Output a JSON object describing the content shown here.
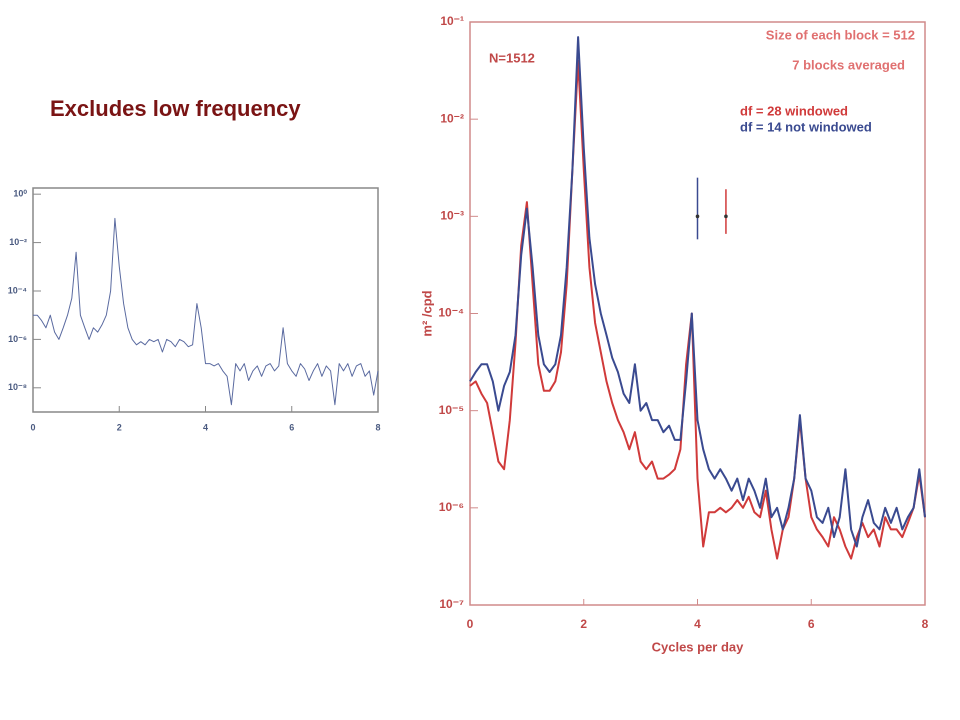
{
  "title": "Excludes low frequency",
  "chart_data": [
    {
      "type": "line",
      "color": "#5a6aa0",
      "log_y": true,
      "xlim": [
        0,
        8
      ],
      "xticks": [
        0,
        2,
        4,
        6,
        8
      ],
      "ylim": [
        1e-09,
        1.8
      ],
      "yticks": [
        {
          "value": 1,
          "label": "10⁰"
        },
        {
          "value": 0.01,
          "label": "10⁻²"
        },
        {
          "value": 0.0001,
          "label": "10⁻⁴"
        },
        {
          "value": 1e-06,
          "label": "10⁻⁶"
        },
        {
          "value": 1e-08,
          "label": "10⁻⁸"
        }
      ],
      "x": [
        0,
        0.1,
        0.2,
        0.3,
        0.4,
        0.5,
        0.6,
        0.7,
        0.8,
        0.9,
        1,
        1.1,
        1.2,
        1.3,
        1.4,
        1.5,
        1.6,
        1.7,
        1.8,
        1.9,
        2,
        2.1,
        2.2,
        2.3,
        2.4,
        2.5,
        2.6,
        2.7,
        2.8,
        2.9,
        3,
        3.1,
        3.2,
        3.3,
        3.4,
        3.5,
        3.6,
        3.7,
        3.8,
        3.9,
        4,
        4.1,
        4.2,
        4.3,
        4.4,
        4.5,
        4.6,
        4.7,
        4.8,
        4.9,
        5,
        5.1,
        5.2,
        5.3,
        5.4,
        5.5,
        5.6,
        5.7,
        5.8,
        5.9,
        6,
        6.1,
        6.2,
        6.3,
        6.4,
        6.5,
        6.6,
        6.7,
        6.8,
        6.9,
        7,
        7.1,
        7.2,
        7.3,
        7.4,
        7.5,
        7.6,
        7.7,
        7.8,
        7.9,
        8
      ],
      "values": [
        1e-05,
        1e-05,
        6e-06,
        3e-06,
        1e-05,
        2e-06,
        1e-06,
        3e-06,
        1e-05,
        5e-05,
        0.004,
        1e-05,
        3e-06,
        1e-06,
        3e-06,
        2e-06,
        4e-06,
        1e-05,
        0.0001,
        0.1,
        0.001,
        3e-05,
        3e-06,
        1e-06,
        6e-07,
        8e-07,
        6e-07,
        1e-06,
        8e-07,
        1e-06,
        3e-07,
        1e-06,
        8e-07,
        5e-07,
        1e-06,
        8e-07,
        5e-07,
        6e-07,
        3e-05,
        3e-06,
        1e-07,
        1e-07,
        8e-08,
        1e-07,
        5e-08,
        3e-08,
        2e-09,
        1e-07,
        5e-08,
        1e-07,
        2e-08,
        5e-08,
        8e-08,
        3e-08,
        8e-08,
        1e-07,
        5e-08,
        8e-08,
        3e-06,
        1e-07,
        5e-08,
        3e-08,
        1e-07,
        6e-08,
        2e-08,
        5e-08,
        1e-07,
        3e-08,
        8e-08,
        5e-08,
        2e-09,
        1e-07,
        5e-08,
        1e-07,
        3e-08,
        8e-08,
        1e-07,
        3e-08,
        5e-08,
        5e-09,
        5e-08
      ]
    },
    {
      "type": "line",
      "log_y": true,
      "x_label": "Cycles per day",
      "y_label": "m² /cpd",
      "annotations": [
        "N=1512",
        "Size of each block =  512",
        "7 blocks averaged"
      ],
      "xlim": [
        0,
        8
      ],
      "xticks": [
        0,
        2,
        4,
        6,
        8
      ],
      "ylim": [
        1e-07,
        0.1
      ],
      "yticks": [
        {
          "value": 0.1,
          "label": "10⁻¹"
        },
        {
          "value": 0.01,
          "label": "10⁻²"
        },
        {
          "value": 0.001,
          "label": "10⁻³"
        },
        {
          "value": 0.0001,
          "label": "10⁻⁴"
        },
        {
          "value": 1e-05,
          "label": "10⁻⁵"
        },
        {
          "value": 1e-06,
          "label": "10⁻⁶"
        },
        {
          "value": 1e-07,
          "label": "10⁻⁷"
        }
      ],
      "x": [
        0,
        0.1,
        0.2,
        0.3,
        0.4,
        0.5,
        0.6,
        0.7,
        0.8,
        0.9,
        1,
        1.1,
        1.2,
        1.3,
        1.4,
        1.5,
        1.6,
        1.7,
        1.8,
        1.9,
        2,
        2.1,
        2.2,
        2.3,
        2.4,
        2.5,
        2.6,
        2.7,
        2.8,
        2.9,
        3,
        3.1,
        3.2,
        3.3,
        3.4,
        3.5,
        3.6,
        3.7,
        3.8,
        3.9,
        4,
        4.1,
        4.2,
        4.3,
        4.4,
        4.5,
        4.6,
        4.7,
        4.8,
        4.9,
        5,
        5.1,
        5.2,
        5.3,
        5.4,
        5.5,
        5.6,
        5.7,
        5.8,
        5.9,
        6,
        6.1,
        6.2,
        6.3,
        6.4,
        6.5,
        6.6,
        6.7,
        6.8,
        6.9,
        7,
        7.1,
        7.2,
        7.3,
        7.4,
        7.5,
        7.6,
        7.7,
        7.8,
        7.9,
        8
      ],
      "series": [
        {
          "name": "df =  28 windowed",
          "color": "#d03a3a",
          "values": [
            1.8e-05,
            2e-05,
            1.5e-05,
            1.2e-05,
            6e-06,
            3e-06,
            2.5e-06,
            8e-06,
            5e-05,
            0.0005,
            0.0014,
            0.0002,
            3e-05,
            1.6e-05,
            1.6e-05,
            2e-05,
            4e-05,
            0.0002,
            0.003,
            0.04,
            0.003,
            0.0003,
            8e-05,
            4e-05,
            2e-05,
            1.2e-05,
            8e-06,
            6e-06,
            4e-06,
            6e-06,
            3e-06,
            2.5e-06,
            3e-06,
            2e-06,
            2e-06,
            2.2e-06,
            2.5e-06,
            4e-06,
            3e-05,
            0.0001,
            2e-06,
            4e-07,
            9e-07,
            9e-07,
            1e-06,
            9e-07,
            1e-06,
            1.2e-06,
            1e-06,
            1.3e-06,
            9e-07,
            8e-07,
            1.5e-06,
            6e-07,
            3e-07,
            6e-07,
            8e-07,
            2e-06,
            8e-06,
            2e-06,
            8e-07,
            6e-07,
            5e-07,
            4e-07,
            8e-07,
            6e-07,
            4e-07,
            3e-07,
            5e-07,
            7e-07,
            5e-07,
            6e-07,
            4e-07,
            8e-07,
            6e-07,
            6e-07,
            5e-07,
            7e-07,
            1e-06,
            2.2e-06,
            8e-07
          ]
        },
        {
          "name": "df = 14 not windowed",
          "color": "#3a4a90",
          "values": [
            2e-05,
            2.5e-05,
            3e-05,
            3e-05,
            2e-05,
            1e-05,
            1.8e-05,
            2.5e-05,
            6e-05,
            0.0004,
            0.0012,
            0.0003,
            6e-05,
            3e-05,
            2.5e-05,
            3e-05,
            6e-05,
            0.0003,
            0.003,
            0.07,
            0.005,
            0.0006,
            0.0002,
            0.0001,
            6e-05,
            3.5e-05,
            2.5e-05,
            1.5e-05,
            1.2e-05,
            3e-05,
            1e-05,
            1.2e-05,
            8e-06,
            8e-06,
            6e-06,
            7e-06,
            5e-06,
            5e-06,
            2e-05,
            0.0001,
            8e-06,
            4e-06,
            2.5e-06,
            2e-06,
            2.5e-06,
            2e-06,
            1.5e-06,
            2e-06,
            1.2e-06,
            2e-06,
            1.5e-06,
            1e-06,
            2e-06,
            8e-07,
            1e-06,
            6e-07,
            1e-06,
            2e-06,
            9e-06,
            2e-06,
            1.5e-06,
            8e-07,
            7e-07,
            1e-06,
            5e-07,
            8e-07,
            2.5e-06,
            6e-07,
            4e-07,
            8e-07,
            1.2e-06,
            7e-07,
            6e-07,
            1e-06,
            7e-07,
            1e-06,
            6e-07,
            8e-07,
            1e-06,
            2.5e-06,
            8e-07
          ]
        }
      ],
      "error_bars": [
        {
          "x": 4,
          "y": 0.001,
          "low": 0.00058,
          "high": 0.0025,
          "color": "#3a4a90"
        },
        {
          "x": 4.5,
          "y": 0.001,
          "low": 0.00066,
          "high": 0.0019,
          "color": "#d03a3a"
        }
      ]
    }
  ]
}
